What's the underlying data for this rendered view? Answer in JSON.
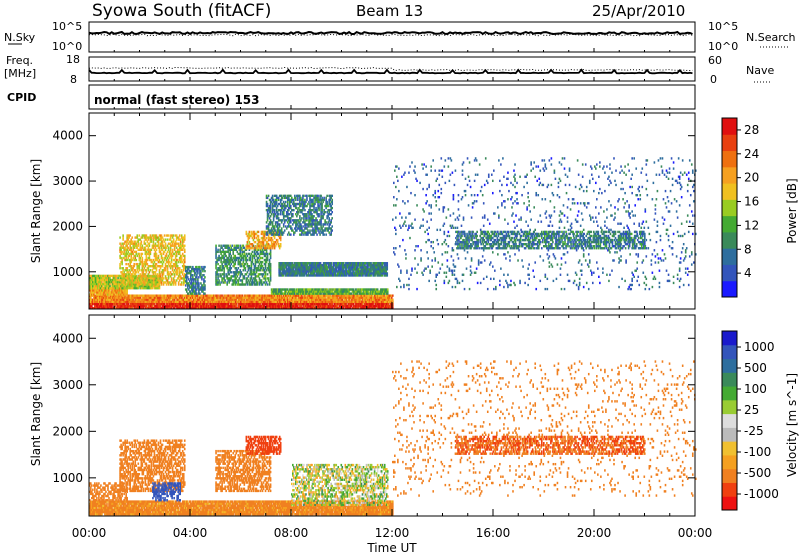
{
  "header": {
    "station": "Syowa South (fitACF)",
    "beam": "Beam 13",
    "date": "25/Apr/2010"
  },
  "noise_panel": {
    "left_label": "N.Sky",
    "left_ticks": [
      "10^5",
      "10^0"
    ],
    "right_ticks": [
      "10^5",
      "10^0"
    ],
    "right_label": "N.Search",
    "log_scale": true
  },
  "freq_panel": {
    "left_label_line1": "Freq.",
    "left_label_line2": "[MHz]",
    "left_ticks": [
      "18",
      "8"
    ],
    "right_ticks": [
      "60",
      "0"
    ],
    "right_label": "Nave"
  },
  "cpid_label": "CPID",
  "mode_text": "normal (fast stereo) 153",
  "x_axis": {
    "label": "Time UT",
    "ticks": [
      "00:00",
      "04:00",
      "08:00",
      "12:00",
      "16:00",
      "20:00",
      "00:00"
    ],
    "range_hours": [
      0,
      24
    ]
  },
  "colors": {
    "power_scale": [
      "#1a1aff",
      "#3355bb",
      "#2e6e9e",
      "#3a8a5a",
      "#44aa33",
      "#99cc22",
      "#f0c020",
      "#f5a020",
      "#ee7010",
      "#e84010",
      "#e01010"
    ],
    "velocity_scale": [
      "#ee1111",
      "#f04010",
      "#f08020",
      "#f5a020",
      "#f0c030",
      "#bbbbbb",
      "#dddddd",
      "#99cc33",
      "#44aa33",
      "#3a8a5a",
      "#2e6e9e",
      "#3355bb",
      "#1a1acc"
    ]
  },
  "chart_data": [
    {
      "type": "heatmap",
      "panel": "power",
      "xlabel": "Time UT",
      "ylabel": "Slant Range [km]",
      "xlim": [
        0,
        24
      ],
      "ylim": [
        180,
        4500
      ],
      "yticks": [
        1000,
        2000,
        3000,
        4000
      ],
      "colorbar": {
        "label": "Power [dB]",
        "ticks": [
          4,
          8,
          12,
          16,
          20,
          24,
          28
        ],
        "range": [
          0,
          30
        ]
      },
      "regions": [
        {
          "t": [
            0.0,
            12.0
          ],
          "r": [
            180,
            320
          ],
          "value": 28
        },
        {
          "t": [
            0.0,
            12.0
          ],
          "r": [
            320,
            480
          ],
          "value": 22
        },
        {
          "t": [
            0.0,
            1.5
          ],
          "r": [
            480,
            620
          ],
          "value": 20
        },
        {
          "t": [
            0.0,
            2.8
          ],
          "r": [
            620,
            900
          ],
          "value": 16
        },
        {
          "t": [
            1.2,
            3.8
          ],
          "r": [
            700,
            1800
          ],
          "value": 18
        },
        {
          "t": [
            3.8,
            4.6
          ],
          "r": [
            500,
            1100
          ],
          "value": 8
        },
        {
          "t": [
            5.0,
            7.2
          ],
          "r": [
            700,
            1600
          ],
          "value": 10
        },
        {
          "t": [
            6.2,
            7.6
          ],
          "r": [
            1500,
            1900
          ],
          "value": 20
        },
        {
          "t": [
            7.0,
            9.6
          ],
          "r": [
            1800,
            2700
          ],
          "value": 8
        },
        {
          "t": [
            7.2,
            11.8
          ],
          "r": [
            500,
            600
          ],
          "value": 12
        },
        {
          "t": [
            7.5,
            11.8
          ],
          "r": [
            900,
            1200
          ],
          "value": 8
        },
        {
          "t": [
            12.0,
            24.0
          ],
          "r": [
            600,
            3500
          ],
          "value": 6
        },
        {
          "t": [
            14.5,
            22.0
          ],
          "r": [
            1500,
            1900
          ],
          "value": 8
        }
      ]
    },
    {
      "type": "heatmap",
      "panel": "velocity",
      "xlabel": "Time UT",
      "ylabel": "Slant Range [km]",
      "xlim": [
        0,
        24
      ],
      "ylim": [
        180,
        4500
      ],
      "yticks": [
        1000,
        2000,
        3000,
        4000
      ],
      "colorbar": {
        "label": "Velocity [m s^-1]",
        "ticks": [
          1000,
          500,
          100,
          25,
          -25,
          -100,
          -500,
          -1000
        ],
        "range": [
          -1250,
          1250
        ]
      },
      "regions": [
        {
          "t": [
            0.0,
            12.0
          ],
          "r": [
            200,
            500
          ],
          "value": -150
        },
        {
          "t": [
            0.0,
            1.5
          ],
          "r": [
            500,
            900
          ],
          "value": -300
        },
        {
          "t": [
            1.2,
            3.8
          ],
          "r": [
            700,
            1800
          ],
          "value": -400
        },
        {
          "t": [
            2.5,
            3.6
          ],
          "r": [
            500,
            900
          ],
          "value": 600
        },
        {
          "t": [
            5.0,
            7.2
          ],
          "r": [
            700,
            1600
          ],
          "value": -300
        },
        {
          "t": [
            6.2,
            7.6
          ],
          "r": [
            1500,
            1900
          ],
          "value": -600
        },
        {
          "t": [
            8.0,
            11.8
          ],
          "r": [
            400,
            1300
          ],
          "value": 10
        },
        {
          "t": [
            12.0,
            24.0
          ],
          "r": [
            600,
            3500
          ],
          "value": -200
        },
        {
          "t": [
            14.5,
            22.0
          ],
          "r": [
            1500,
            1900
          ],
          "value": -500
        }
      ]
    }
  ]
}
